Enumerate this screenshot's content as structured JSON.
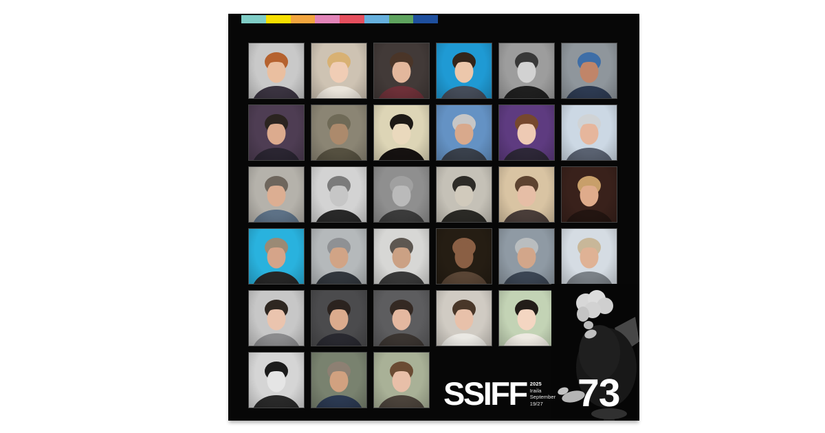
{
  "page": {
    "background": "#ffffff"
  },
  "poster": {
    "background": "#070707",
    "stripe_colors": [
      "#7fcdc6",
      "#f6df00",
      "#f2a53e",
      "#e284b8",
      "#e64f5e",
      "#66b0dd",
      "#5ea35e",
      "#1e4f9e"
    ],
    "logo": {
      "title": "SSIFF",
      "year": "2025",
      "month_basque": "Iraila",
      "month_english": "September",
      "dates": "19/27",
      "edition": "73"
    },
    "feature_photo": {
      "desc": "black-and-white photo of a woman with platinum curly hair, dark sparkly dress, seated barefoot on a stool"
    },
    "portraits": [
      {
        "r": 0,
        "c": 0,
        "desc": "woman with short auburn curly hair on grey backdrop",
        "bg": "#c9c9c9",
        "hair": "#b5622f",
        "skin": "#eabfa0",
        "top": "#3a3340"
      },
      {
        "r": 0,
        "c": 1,
        "desc": "young blonde woman on cream backdrop",
        "bg": "#cec3b3",
        "hair": "#d8b173",
        "skin": "#f0cdb5",
        "top": "#e9e3d9"
      },
      {
        "r": 0,
        "c": 2,
        "desc": "smiling woman with dark hair on dark backdrop",
        "bg": "#423a38",
        "hair": "#4a3528",
        "skin": "#e3b79c",
        "top": "#6d3038"
      },
      {
        "r": 0,
        "c": 3,
        "desc": "man in white turtleneck on bright blue backdrop",
        "bg": "#1f9ad4",
        "hair": "#33251b",
        "skin": "#ecc7ab",
        "top": "#454c59"
      },
      {
        "r": 0,
        "c": 4,
        "desc": "black-and-white portrait of a young man",
        "bg": "#9d9d9d",
        "hair": "#383838",
        "skin": "#d2d2d2",
        "top": "#1f1f1f"
      },
      {
        "r": 0,
        "c": 5,
        "desc": "smiling bearded man with blue-tinted hair",
        "bg": "#8f969c",
        "hair": "#3e6ea7",
        "skin": "#c08569",
        "top": "#2d3a51"
      },
      {
        "r": 1,
        "c": 0,
        "desc": "dark-haired man in suit on plum backdrop",
        "bg": "#4e3d53",
        "hair": "#2b2420",
        "skin": "#dcab8e",
        "top": "#2a2531"
      },
      {
        "r": 1,
        "c": 1,
        "desc": "weathered man in olive hat and scarf",
        "bg": "#8b8574",
        "hair": "#6f6a57",
        "skin": "#ac8a6c",
        "top": "#555040"
      },
      {
        "r": 1,
        "c": 2,
        "desc": "sepia portrait of woman with black bob and fringe",
        "bg": "#ddd5b6",
        "hair": "#1d1915",
        "skin": "#ead9bd",
        "top": "#151110"
      },
      {
        "r": 1,
        "c": 3,
        "desc": "man with swept grey hair and stubble on blue backdrop",
        "bg": "#6492c4",
        "hair": "#c6c6c6",
        "skin": "#d8a98c",
        "top": "#39404b"
      },
      {
        "r": 1,
        "c": 4,
        "desc": "young woman with tied-back auburn hair on violet backdrop",
        "bg": "#5e3b80",
        "hair": "#76482e",
        "skin": "#eecab4",
        "top": "#2d2737"
      },
      {
        "r": 1,
        "c": 5,
        "desc": "smiling man with white hair on pale blue backdrop",
        "bg": "#ccd8e4",
        "hair": "#d0d3d5",
        "skin": "#e6b69c",
        "top": "#596170"
      },
      {
        "r": 2,
        "c": 0,
        "desc": "man with tousled grey-brown hair in denim jacket",
        "bg": "#b5b2ab",
        "hair": "#6e665d",
        "skin": "#dcae92",
        "top": "#5d7186"
      },
      {
        "r": 2,
        "c": 1,
        "desc": "black-and-white man with heavy glasses and beard",
        "bg": "#d3d3d3",
        "hair": "#7b7b7b",
        "skin": "#c6c6c6",
        "top": "#282828"
      },
      {
        "r": 2,
        "c": 2,
        "desc": "black-and-white man with receding wispy hair",
        "bg": "#8f8f8f",
        "hair": "#a0a0a0",
        "skin": "#bababa",
        "top": "#3b3b3b"
      },
      {
        "r": 2,
        "c": 3,
        "desc": "black-and-white elderly woman with dark headscarf",
        "bg": "#c5c1b7",
        "hair": "#2d2b27",
        "skin": "#d1cabc",
        "top": "#2a2925"
      },
      {
        "r": 2,
        "c": 4,
        "desc": "woman with brown bob and glasses on beige backdrop",
        "bg": "#d9c4a3",
        "hair": "#5d4330",
        "skin": "#e6bea6",
        "top": "#493d39"
      },
      {
        "r": 2,
        "c": 5,
        "desc": "woman with glasses resting cheek on hand on dark red backdrop",
        "bg": "#39211b",
        "hair": "#c89f6a",
        "skin": "#dfab8b",
        "top": "#231511"
      },
      {
        "r": 3,
        "c": 0,
        "desc": "long-haired man on bright cyan backdrop",
        "bg": "#29b2de",
        "hair": "#9a8a75",
        "skin": "#d5a489",
        "top": "#272727"
      },
      {
        "r": 3,
        "c": 1,
        "desc": "man with swept grey hair and goatee",
        "bg": "#b5b9bb",
        "hair": "#8f9194",
        "skin": "#d1a486",
        "top": "#32373d"
      },
      {
        "r": 3,
        "c": 2,
        "desc": "man with dark curly hair and round sunglasses",
        "bg": "#d7d7d5",
        "hair": "#5d5751",
        "skin": "#cba184",
        "top": "#393939"
      },
      {
        "r": 3,
        "c": 3,
        "desc": "bald man in brown jacket on dark backdrop",
        "bg": "#251d13",
        "hair": "#8a5f44",
        "skin": "#8a5f44",
        "top": "#594535"
      },
      {
        "r": 3,
        "c": 4,
        "desc": "man with grey hair on blue-grey backdrop",
        "bg": "#8f9aa4",
        "hair": "#b9bdbf",
        "skin": "#d2a68a",
        "top": "#3b4553"
      },
      {
        "r": 3,
        "c": 5,
        "desc": "bald man with glasses on pale backdrop",
        "bg": "#d5dce3",
        "hair": "#c8b799",
        "skin": "#dfb295",
        "top": "#7b8187"
      },
      {
        "r": 4,
        "c": 0,
        "desc": "woman with dark bob in grey blazer and blue shirt",
        "bg": "#c7c7c7",
        "hair": "#2e2721",
        "skin": "#eac4ae",
        "top": "#8b8b8d"
      },
      {
        "r": 4,
        "c": 1,
        "desc": "man with dark hair and goatee in dark suit",
        "bg": "#4b4b4d",
        "hair": "#2b231f",
        "skin": "#dbab8d",
        "top": "#292930"
      },
      {
        "r": 4,
        "c": 2,
        "desc": "woman with long dark hair glancing over shoulder",
        "bg": "#5d5d5f",
        "hair": "#342923",
        "skin": "#e4b8a0",
        "top": "#3b3531"
      },
      {
        "r": 4,
        "c": 3,
        "desc": "smiling woman with long dark hair in white top",
        "bg": "#d0cbc3",
        "hair": "#493729",
        "skin": "#e8c1aa",
        "top": "#eae8e3"
      },
      {
        "r": 4,
        "c": 4,
        "desc": "young woman with dark hair on soft green backdrop",
        "bg": "#c3d3b5",
        "hair": "#231d19",
        "skin": "#f4d6c2",
        "top": "#ede9e1"
      },
      {
        "r": 5,
        "c": 0,
        "desc": "black-and-white woman resting chin on hand",
        "bg": "#d5d5d5",
        "hair": "#1b1b1b",
        "skin": "#e5e5e5",
        "top": "#292929"
      },
      {
        "r": 5,
        "c": 1,
        "desc": "bald man with intense gaze in navy suit",
        "bg": "#79826f",
        "hair": "#8d8073",
        "skin": "#d1a180",
        "top": "#2b3951"
      },
      {
        "r": 5,
        "c": 2,
        "desc": "woman with long brown hair looking aside",
        "bg": "#a9b197",
        "hair": "#6a4b33",
        "skin": "#e8bfa8",
        "top": "#4b433b"
      }
    ]
  }
}
